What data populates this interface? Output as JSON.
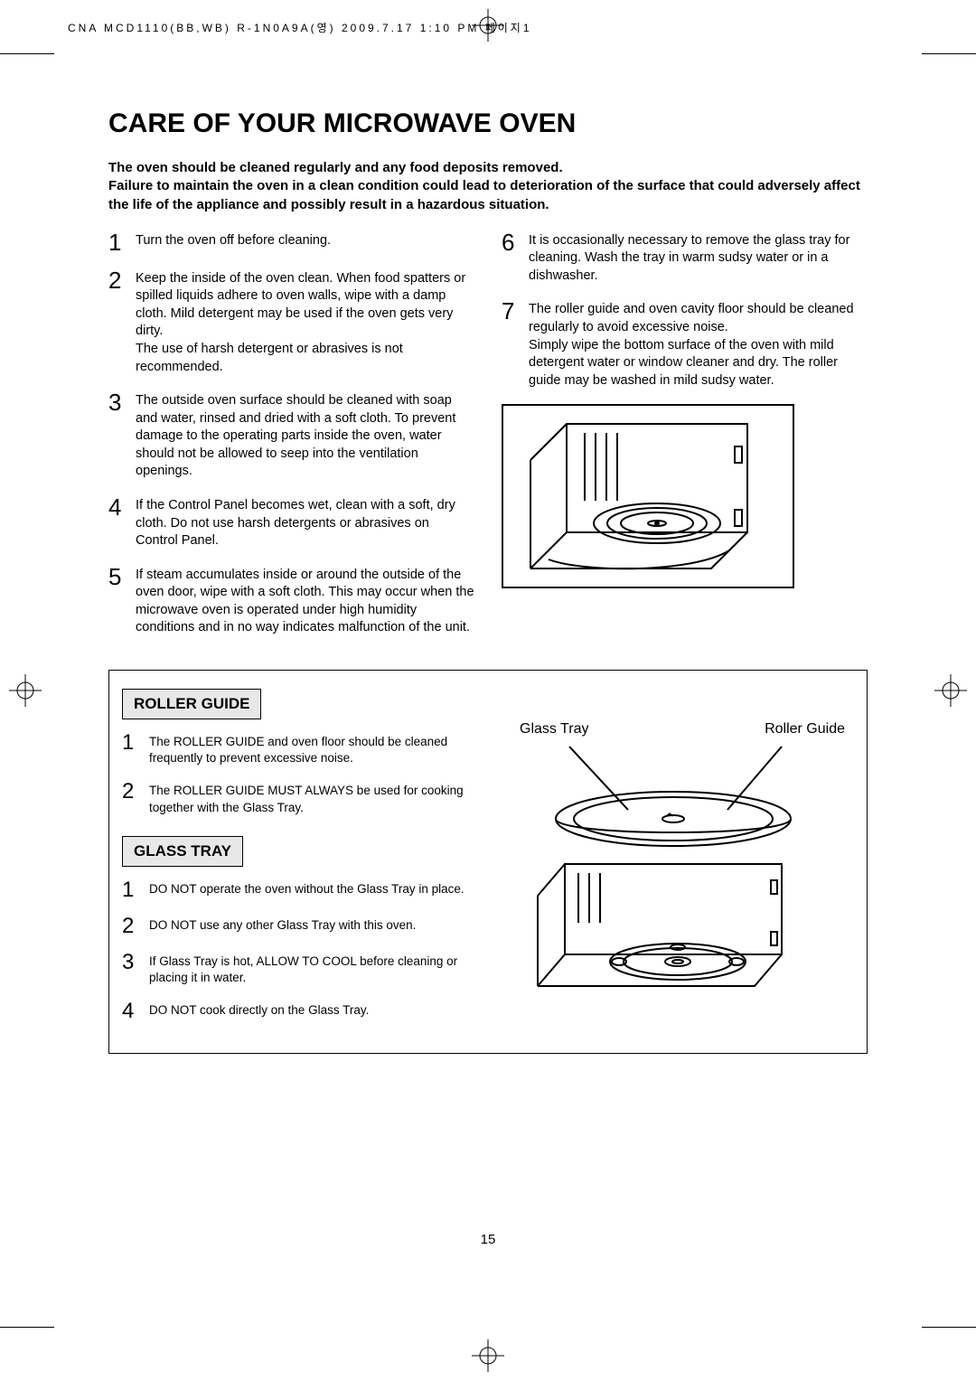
{
  "header_meta": "CNA MCD1110(BB,WB) R-1N0A9A(영) 2009.7.17 1:10 PM 페이지1",
  "page_number": "15",
  "title": "CARE OF YOUR MICROWAVE OVEN",
  "intro": "The oven should be cleaned regularly and any food  deposits removed.\nFailure to maintain the oven in a clean condition could lead to deterioration of the surface that could adversely affect the life of the appliance and possibly result in a hazardous situation.",
  "care_steps_left": [
    {
      "n": "1",
      "t": "Turn the oven off before cleaning."
    },
    {
      "n": "2",
      "t": "Keep the inside of the oven clean. When food spatters or spilled liquids adhere to oven walls, wipe with a damp cloth. Mild detergent may be used if the oven gets very dirty.\nThe use of harsh detergent or abrasives is not recommended."
    },
    {
      "n": "3",
      "t": "The outside oven surface should be cleaned with soap and water, rinsed and dried with a soft cloth. To prevent damage to the operating parts inside the oven, water should not be allowed to seep into the ventilation openings."
    },
    {
      "n": "4",
      "t": "If the Control Panel becomes wet, clean with a soft, dry cloth. Do not use harsh detergents or abrasives on Control Panel."
    },
    {
      "n": "5",
      "t": "If steam accumulates inside or around the outside of the oven door, wipe with a soft cloth. This may occur when the microwave oven is operated under high humidity conditions and in no way indicates malfunction of the unit."
    }
  ],
  "care_steps_right": [
    {
      "n": "6",
      "t": "It is occasionally necessary to remove the glass tray for cleaning. Wash the tray in warm sudsy water or in a dishwasher."
    },
    {
      "n": "7",
      "t": "The roller guide and oven cavity floor should be cleaned regularly to avoid excessive noise.\nSimply wipe the bottom surface of the oven with mild detergent water or window cleaner and dry. The roller guide may be washed in mild sudsy water."
    }
  ],
  "roller_guide_title": "ROLLER GUIDE",
  "roller_guide_steps": [
    {
      "n": "1",
      "t": "The ROLLER GUIDE and oven floor should be cleaned frequently to prevent excessive noise."
    },
    {
      "n": "2",
      "t": "The ROLLER GUIDE MUST ALWAYS be used for cooking together with the Glass Tray."
    }
  ],
  "glass_tray_title": "GLASS TRAY",
  "glass_tray_steps": [
    {
      "n": "1",
      "t": "DO NOT operate the oven without the Glass Tray in place."
    },
    {
      "n": "2",
      "t": "DO NOT use any other Glass Tray with this oven."
    },
    {
      "n": "3",
      "t": "If Glass Tray is hot, ALLOW TO COOL before cleaning or placing it in water."
    },
    {
      "n": "4",
      "t": "DO NOT cook directly on the Glass Tray."
    }
  ],
  "label_glass_tray": "Glass Tray",
  "label_roller_guide": "Roller Guide"
}
